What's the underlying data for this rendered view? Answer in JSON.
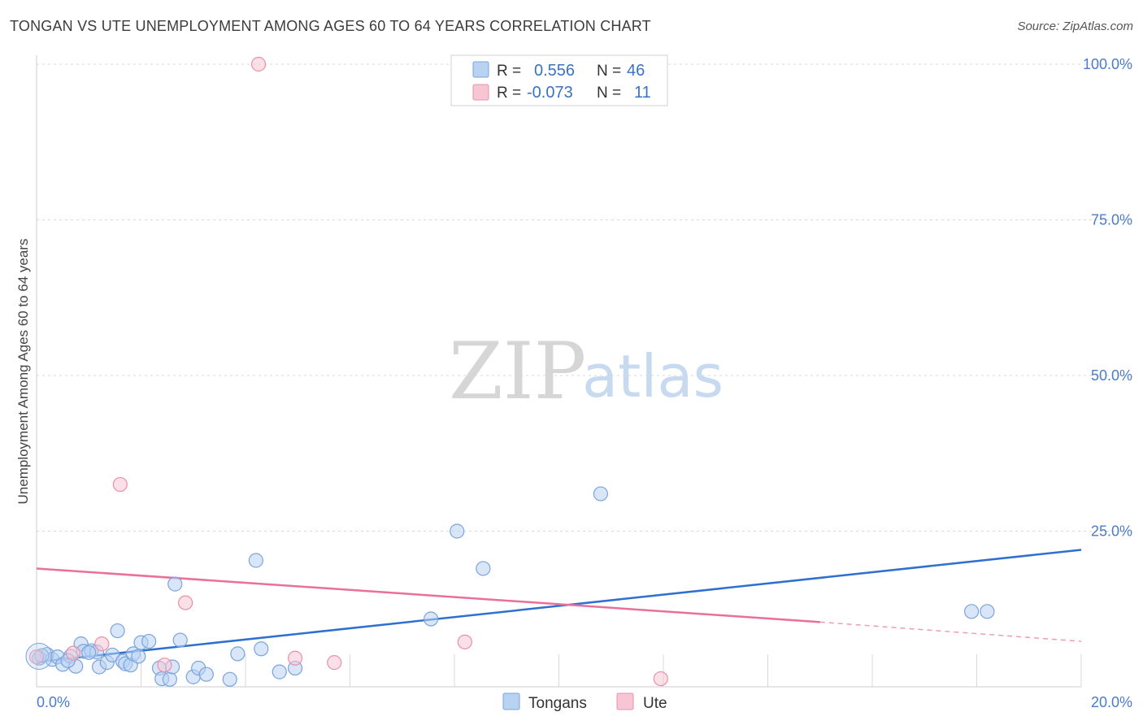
{
  "title": "TONGAN VS UTE UNEMPLOYMENT AMONG AGES 60 TO 64 YEARS CORRELATION CHART",
  "source": "Source: ZipAtlas.com",
  "watermark": {
    "zip": "ZIP",
    "atlas": "atlas"
  },
  "colors": {
    "tongans_fill": "#b8d2f2",
    "tongans_stroke": "#7aa4dc",
    "tongans_line": "#2f6fd0",
    "ute_fill": "#f7c6d4",
    "ute_stroke": "#e890aa",
    "ute_line": "#e8709a",
    "grid": "#d8d8d8",
    "axis_label": "#4a7cc9"
  },
  "legend": {
    "rows": [
      {
        "r_label": "R =",
        "r_value": "0.556",
        "n_label": "N =",
        "n_value": "46"
      },
      {
        "r_label": "R =",
        "r_value": "-0.073",
        "n_label": "N =",
        "n_value": "11"
      }
    ]
  },
  "bottom_legend": {
    "tongans": "Tongans",
    "ute": "Ute"
  },
  "chart_data": {
    "type": "scatter",
    "title": "TONGAN VS UTE UNEMPLOYMENT AMONG AGES 60 TO 64 YEARS CORRELATION CHART",
    "xlabel": "",
    "ylabel": "Unemployment Among Ages 60 to 64 years",
    "xlim": [
      0,
      20
    ],
    "ylim": [
      0,
      100
    ],
    "x_tick_labels": [
      "0.0%",
      "20.0%"
    ],
    "y_tick_labels": [
      "100.0%",
      "75.0%",
      "50.0%",
      "25.0%"
    ],
    "y_ticks": [
      100,
      75,
      50,
      25
    ],
    "series": [
      {
        "name": "Tongans",
        "points": [
          [
            0.05,
            4.6
          ],
          [
            0.2,
            5.2
          ],
          [
            0.3,
            4.4
          ],
          [
            0.4,
            4.8
          ],
          [
            0.5,
            3.6
          ],
          [
            0.65,
            4.9
          ],
          [
            0.75,
            3.3
          ],
          [
            0.85,
            6.9
          ],
          [
            0.9,
            5.7
          ],
          [
            1.05,
            5.8
          ],
          [
            1.15,
            5.6
          ],
          [
            1.2,
            3.2
          ],
          [
            1.35,
            3.9
          ],
          [
            1.45,
            5.1
          ],
          [
            1.55,
            9.0
          ],
          [
            1.65,
            4.1
          ],
          [
            1.7,
            3.7
          ],
          [
            1.8,
            3.5
          ],
          [
            1.85,
            5.3
          ],
          [
            1.95,
            4.9
          ],
          [
            2.0,
            7.1
          ],
          [
            2.15,
            7.3
          ],
          [
            2.35,
            3.0
          ],
          [
            2.4,
            1.3
          ],
          [
            2.55,
            1.2
          ],
          [
            2.6,
            3.2
          ],
          [
            2.65,
            16.5
          ],
          [
            2.75,
            7.5
          ],
          [
            3.0,
            1.6
          ],
          [
            3.1,
            3.0
          ],
          [
            3.25,
            2.0
          ],
          [
            3.7,
            1.2
          ],
          [
            3.85,
            5.3
          ],
          [
            4.2,
            20.3
          ],
          [
            4.3,
            6.1
          ],
          [
            4.65,
            2.4
          ],
          [
            4.95,
            3.0
          ],
          [
            7.55,
            10.9
          ],
          [
            8.05,
            25.0
          ],
          [
            8.55,
            19.0
          ],
          [
            10.8,
            31.0
          ],
          [
            17.9,
            12.1
          ],
          [
            18.2,
            12.1
          ],
          [
            0.1,
            5.0
          ],
          [
            0.6,
            4.2
          ],
          [
            1.0,
            5.5
          ]
        ],
        "trend": {
          "x0": 0,
          "y0": 4.0,
          "x1": 20,
          "y1": 22.0
        }
      },
      {
        "name": "Ute",
        "points": [
          [
            0.0,
            4.8
          ],
          [
            0.7,
            5.4
          ],
          [
            1.25,
            6.9
          ],
          [
            1.6,
            32.5
          ],
          [
            2.45,
            3.5
          ],
          [
            2.85,
            13.5
          ],
          [
            4.25,
            100.0
          ],
          [
            4.95,
            4.6
          ],
          [
            5.7,
            3.9
          ],
          [
            8.2,
            7.2
          ],
          [
            11.95,
            1.3
          ]
        ],
        "trend": {
          "x0": 0,
          "y0": 19.0,
          "x1": 15,
          "y1": 10.4,
          "dash_to_x": 20,
          "dash_to_y": 7.3
        }
      }
    ]
  }
}
